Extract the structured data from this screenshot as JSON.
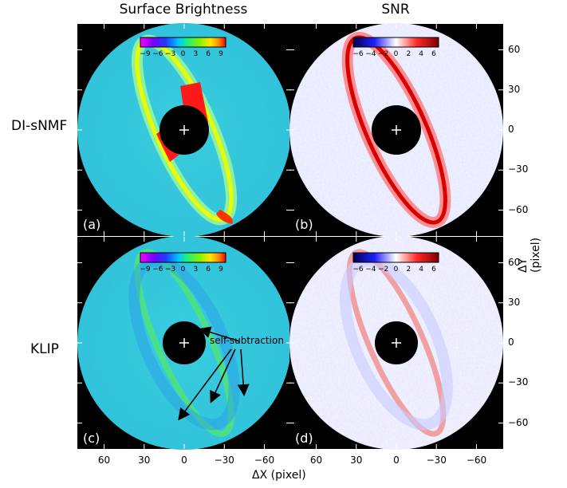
{
  "figure": {
    "columns": [
      "Surface Brightness",
      "SNR"
    ],
    "rows": [
      "DI-sNMF",
      "KLIP"
    ],
    "xlabel": "ΔX (pixel)",
    "ylabel": "ΔY (pixel)",
    "panel_labels": [
      "(a)",
      "(b)",
      "(c)",
      "(d)"
    ],
    "annotation": "self-subtraction"
  },
  "chart_data": [
    {
      "type": "heatmap",
      "panel": "(a)",
      "title": "Surface Brightness",
      "row_label": "DI-sNMF",
      "colormap": "gist_ncar",
      "colorbar_ticks": [
        "−9",
        "−6",
        "−3",
        "0",
        "3",
        "6",
        "9"
      ],
      "xlim": [
        80,
        -80
      ],
      "ylim": [
        -80,
        80
      ]
    },
    {
      "type": "heatmap",
      "panel": "(b)",
      "title": "SNR",
      "row_label": "DI-sNMF",
      "colormap": "seismic",
      "colorbar_ticks": [
        "−6",
        "−4",
        "−2",
        "0",
        "2",
        "4",
        "6"
      ],
      "xlim": [
        80,
        -80
      ],
      "ylim": [
        -80,
        80
      ]
    },
    {
      "type": "heatmap",
      "panel": "(c)",
      "row_label": "KLIP",
      "colormap": "gist_ncar",
      "colorbar_ticks": [
        "−9",
        "−6",
        "−3",
        "0",
        "3",
        "6",
        "9"
      ],
      "xlim": [
        80,
        -80
      ],
      "ylim": [
        -80,
        80
      ]
    },
    {
      "type": "heatmap",
      "panel": "(d)",
      "row_label": "KLIP",
      "colormap": "seismic",
      "colorbar_ticks": [
        "−6",
        "−4",
        "−2",
        "0",
        "2",
        "4",
        "6"
      ],
      "xlim": [
        80,
        -80
      ],
      "ylim": [
        -80,
        80
      ]
    }
  ],
  "axes": {
    "x_ticks": [
      "60",
      "30",
      "0",
      "−30",
      "−60"
    ],
    "x_tick_values": [
      60,
      30,
      0,
      -30,
      -60
    ],
    "y_ticks": [
      "60",
      "30",
      "0",
      "−30",
      "−60"
    ],
    "y_tick_values": [
      60,
      30,
      0,
      -30,
      -60
    ]
  }
}
